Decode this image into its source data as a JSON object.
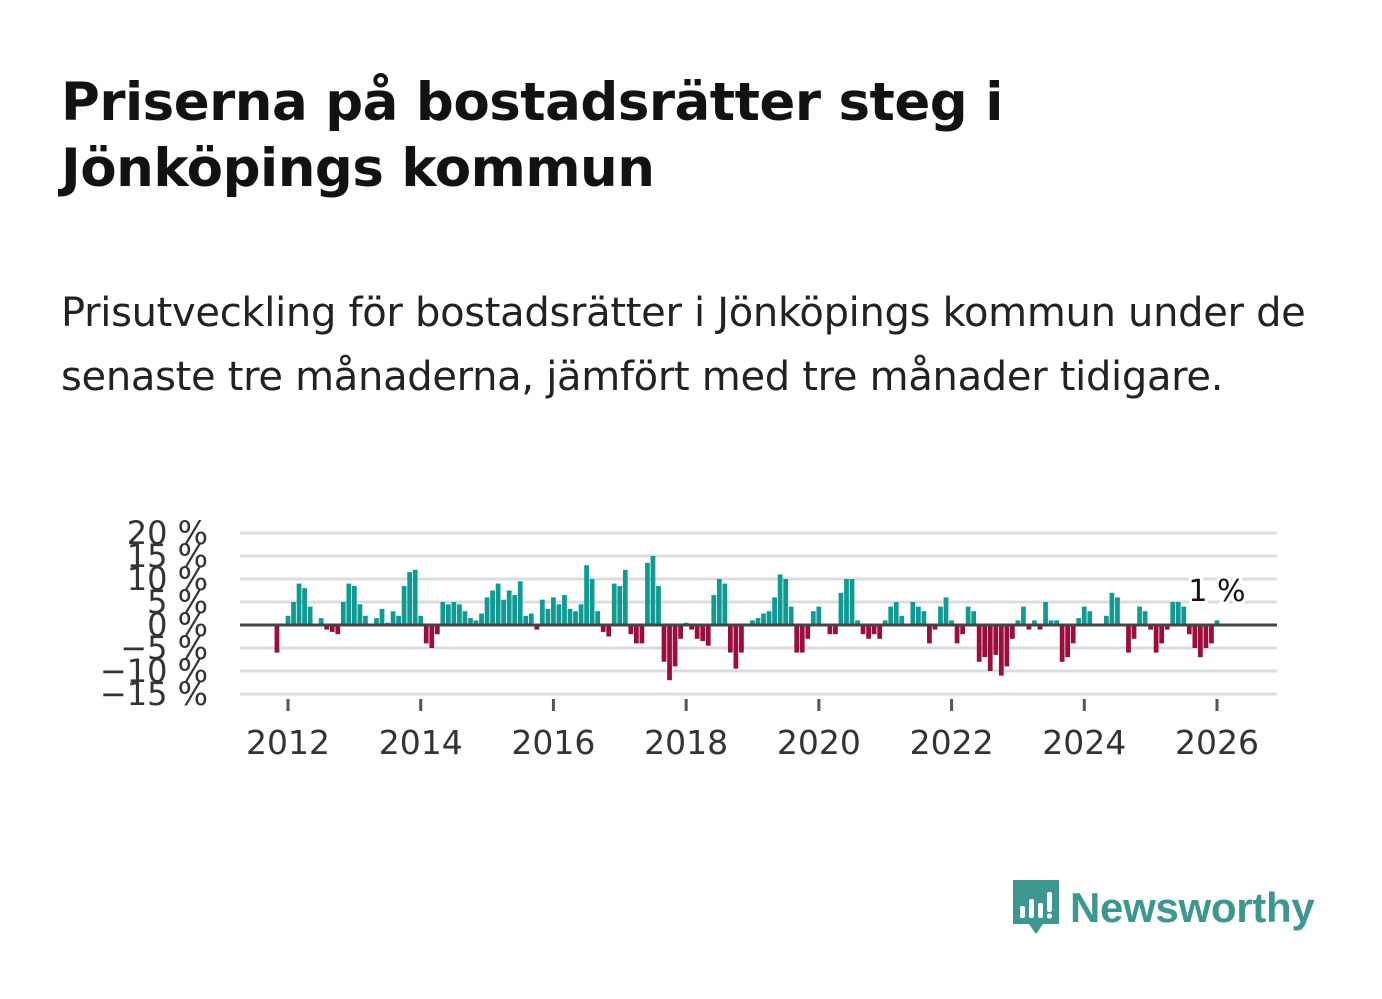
{
  "title": "Priserna på bostadsrätter steg i Jönköpings kommun",
  "subtitle": "Prisutveckling för bostadsrätter i Jönköpings kommun under de senaste tre månaderna, jämfört med tre månader tidigare.",
  "brand": {
    "name": "Newsworthy",
    "color": "#3d9690",
    "icon": "newsworthy-logo-icon"
  },
  "colors": {
    "positive": "#0f9b94",
    "negative": "#9c0d3e",
    "grid": "#dcdcdc",
    "zero_line": "#444444",
    "text": "#333333"
  },
  "chart_data": {
    "type": "bar",
    "title": "Priserna på bostadsrätter steg i Jönköpings kommun",
    "xlabel": "",
    "ylabel": "",
    "ylim": [
      -15,
      20
    ],
    "x_start": 2011.75,
    "x_step": 0.08333,
    "x_range": [
      2011,
      2027.5
    ],
    "x_ticks": [
      2012,
      2014,
      2016,
      2018,
      2020,
      2022,
      2024,
      2026
    ],
    "x_tick_labels": [
      "2012",
      "2014",
      "2016",
      "2018",
      "2020",
      "2022",
      "2024",
      "2026"
    ],
    "y_ticks": [
      20,
      15,
      10,
      5,
      0,
      -5,
      -10,
      -15
    ],
    "y_tick_labels": [
      "20 %",
      "15 %",
      "10 %",
      "5 %",
      "0 %",
      "−5 %",
      "−10 %",
      "−15 %"
    ],
    "grid": true,
    "last_value_label": "1 %",
    "values": [
      0,
      -6,
      0,
      2,
      5,
      9,
      8,
      4,
      0,
      1.5,
      -1,
      -1.5,
      -2,
      5,
      9,
      8.5,
      4.5,
      2,
      0,
      1.5,
      3.5,
      0.5,
      3,
      2,
      8.5,
      11.5,
      12,
      2,
      -4,
      -5,
      -2,
      5,
      4.5,
      5,
      4.5,
      3,
      1.5,
      1,
      2.5,
      6,
      7.5,
      9,
      5.5,
      7.5,
      6.5,
      9.5,
      2,
      2.5,
      -1,
      5.5,
      3.5,
      6,
      4.5,
      6.5,
      3.5,
      3,
      4.5,
      13,
      10,
      3,
      -1.5,
      -2.5,
      9,
      8.5,
      12,
      -2,
      -4,
      -4,
      13.5,
      15,
      8.5,
      -8,
      -12,
      -9,
      -3,
      0.5,
      -1,
      -3,
      -3.5,
      -4.5,
      6.5,
      10,
      9,
      -6,
      -9.5,
      -6,
      0,
      1,
      1.5,
      2.5,
      3,
      6,
      11,
      10,
      4,
      -6,
      -6,
      -3,
      3,
      4,
      0,
      -2,
      -2,
      7,
      10,
      10,
      1,
      -2,
      -3,
      -2,
      -3,
      1,
      4,
      5,
      2,
      0,
      5,
      4,
      3,
      -4,
      -1,
      4,
      6,
      1,
      -4,
      -2,
      4,
      3,
      -8,
      -7,
      -10,
      -6.5,
      -11,
      -9,
      -3,
      1,
      4,
      -1,
      1,
      -1,
      5,
      1,
      1,
      -8,
      -7,
      -4,
      1.5,
      4,
      3,
      0,
      0,
      2,
      7,
      6,
      0,
      -6,
      -3,
      4,
      3,
      -1,
      -6,
      -4,
      -1,
      5,
      5,
      4,
      -2,
      -5,
      -7,
      -5,
      -4,
      1
    ]
  }
}
